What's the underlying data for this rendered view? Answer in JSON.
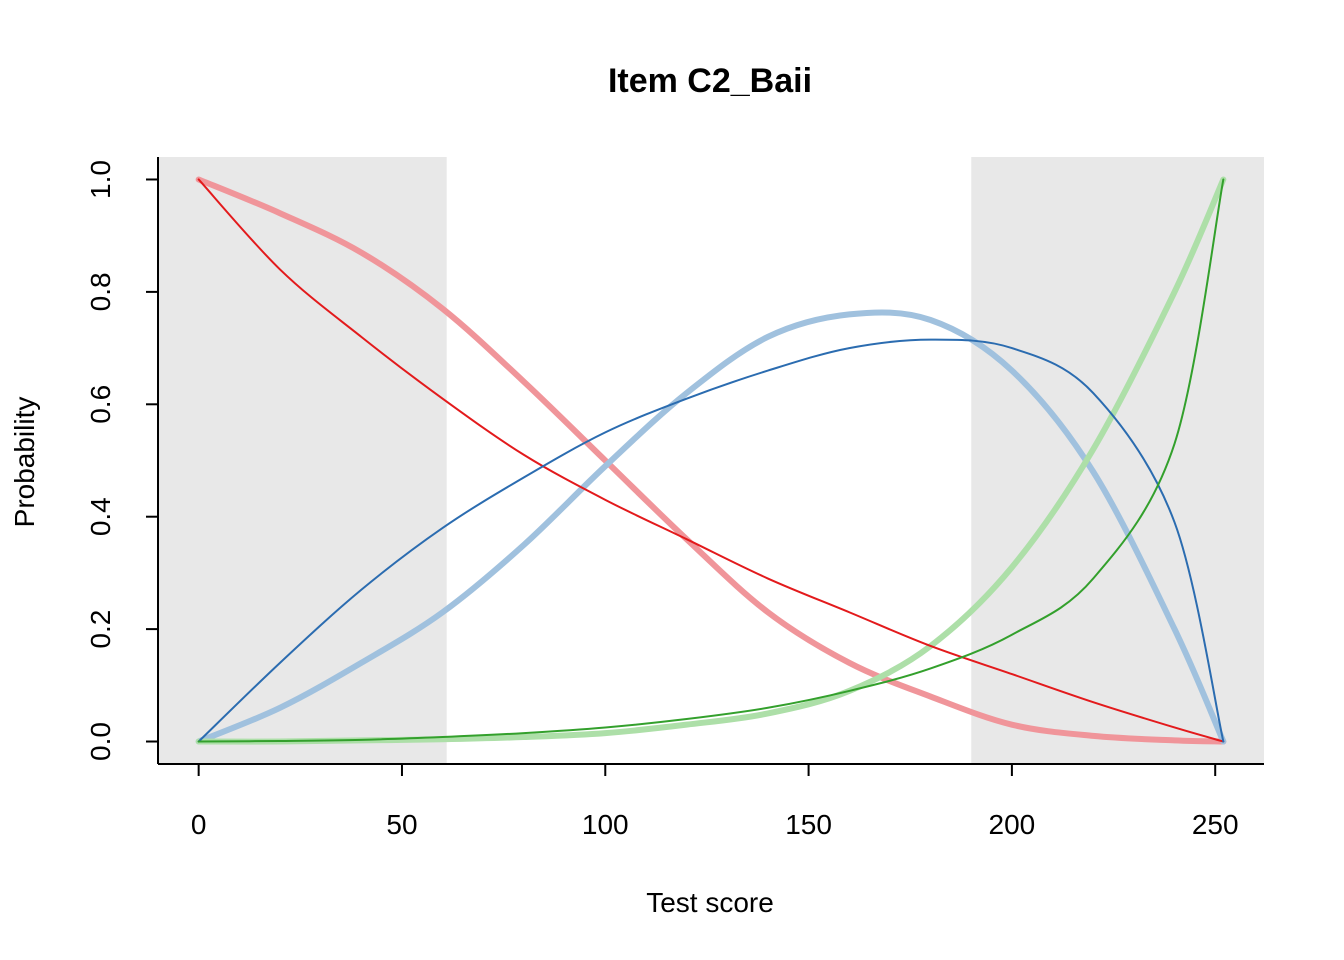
{
  "chart_data": {
    "type": "line",
    "title": "Item C2_Baii",
    "xlabel": "Test score",
    "ylabel": "Probability",
    "xlim": [
      -10,
      262
    ],
    "ylim": [
      -0.04,
      1.04
    ],
    "x_ticks": [
      0,
      50,
      100,
      150,
      200,
      250
    ],
    "y_ticks": [
      0.0,
      0.2,
      0.4,
      0.6,
      0.8,
      1.0
    ],
    "x_tick_labels": [
      "0",
      "50",
      "100",
      "150",
      "200",
      "250"
    ],
    "y_tick_labels": [
      "0.0",
      "0.2",
      "0.4",
      "0.6",
      "0.8",
      "1.0"
    ],
    "grid": false,
    "shaded_regions": [
      {
        "x": [
          -10,
          61
        ],
        "color": "#e8e8e8"
      },
      {
        "x": [
          190,
          262
        ],
        "color": "#e8e8e8"
      }
    ],
    "x": [
      0,
      20,
      40,
      60,
      80,
      100,
      120,
      140,
      160,
      180,
      200,
      220,
      240,
      252
    ],
    "series": [
      {
        "style": "thick",
        "color": "#f0959a",
        "values": [
          1.0,
          0.94,
          0.87,
          0.77,
          0.64,
          0.5,
          0.36,
          0.23,
          0.14,
          0.08,
          0.03,
          0.01,
          0.002,
          0.0
        ]
      },
      {
        "style": "thick",
        "color": "#a0c1de",
        "values": [
          0.0,
          0.06,
          0.14,
          0.23,
          0.35,
          0.49,
          0.62,
          0.72,
          0.76,
          0.75,
          0.66,
          0.48,
          0.2,
          0.0
        ]
      },
      {
        "style": "thick",
        "color": "#addfa8",
        "values": [
          0.0,
          0.0,
          0.002,
          0.004,
          0.008,
          0.015,
          0.03,
          0.05,
          0.09,
          0.17,
          0.31,
          0.52,
          0.8,
          1.0
        ]
      },
      {
        "style": "thin",
        "color": "#e31a1c",
        "values": [
          1.0,
          0.84,
          0.72,
          0.61,
          0.51,
          0.43,
          0.36,
          0.29,
          0.23,
          0.17,
          0.12,
          0.07,
          0.025,
          0.0
        ]
      },
      {
        "style": "thin",
        "color": "#2b6cb0",
        "values": [
          0.0,
          0.14,
          0.27,
          0.38,
          0.47,
          0.55,
          0.61,
          0.66,
          0.7,
          0.715,
          0.7,
          0.62,
          0.39,
          0.0
        ]
      },
      {
        "style": "thin",
        "color": "#33a02c",
        "values": [
          0.0,
          0.001,
          0.003,
          0.008,
          0.015,
          0.025,
          0.04,
          0.06,
          0.09,
          0.13,
          0.19,
          0.29,
          0.53,
          1.0
        ]
      }
    ]
  }
}
